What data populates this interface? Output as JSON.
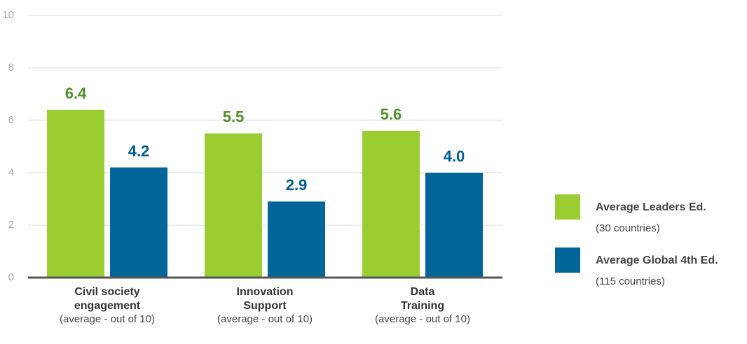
{
  "chart_data": {
    "type": "bar",
    "categories": [
      "Civil society\nengagement",
      "Innovation\nSupport",
      "Data\nTraining"
    ],
    "category_notes": [
      "(average - out of 10)",
      "(average - out of 10)",
      "(average - out of 10)"
    ],
    "series": [
      {
        "name": "Average Leaders Ed.",
        "note": "(30 countries)",
        "color": "#9acd32",
        "label_color": "#4e8f2a",
        "values": [
          6.4,
          5.5,
          5.6
        ],
        "value_labels": [
          "6.4",
          "5.5",
          "5.6"
        ]
      },
      {
        "name": "Average Global 4th Ed.",
        "note": "(115 countries)",
        "color": "#006699",
        "label_color": "#005c8f",
        "values": [
          4.2,
          2.9,
          4.0
        ],
        "value_labels": [
          "4.2",
          "2.9",
          "4.0"
        ]
      }
    ],
    "ylim": [
      0,
      10
    ],
    "yticks": [
      0,
      2,
      4,
      6,
      8,
      10
    ],
    "grid": true
  }
}
